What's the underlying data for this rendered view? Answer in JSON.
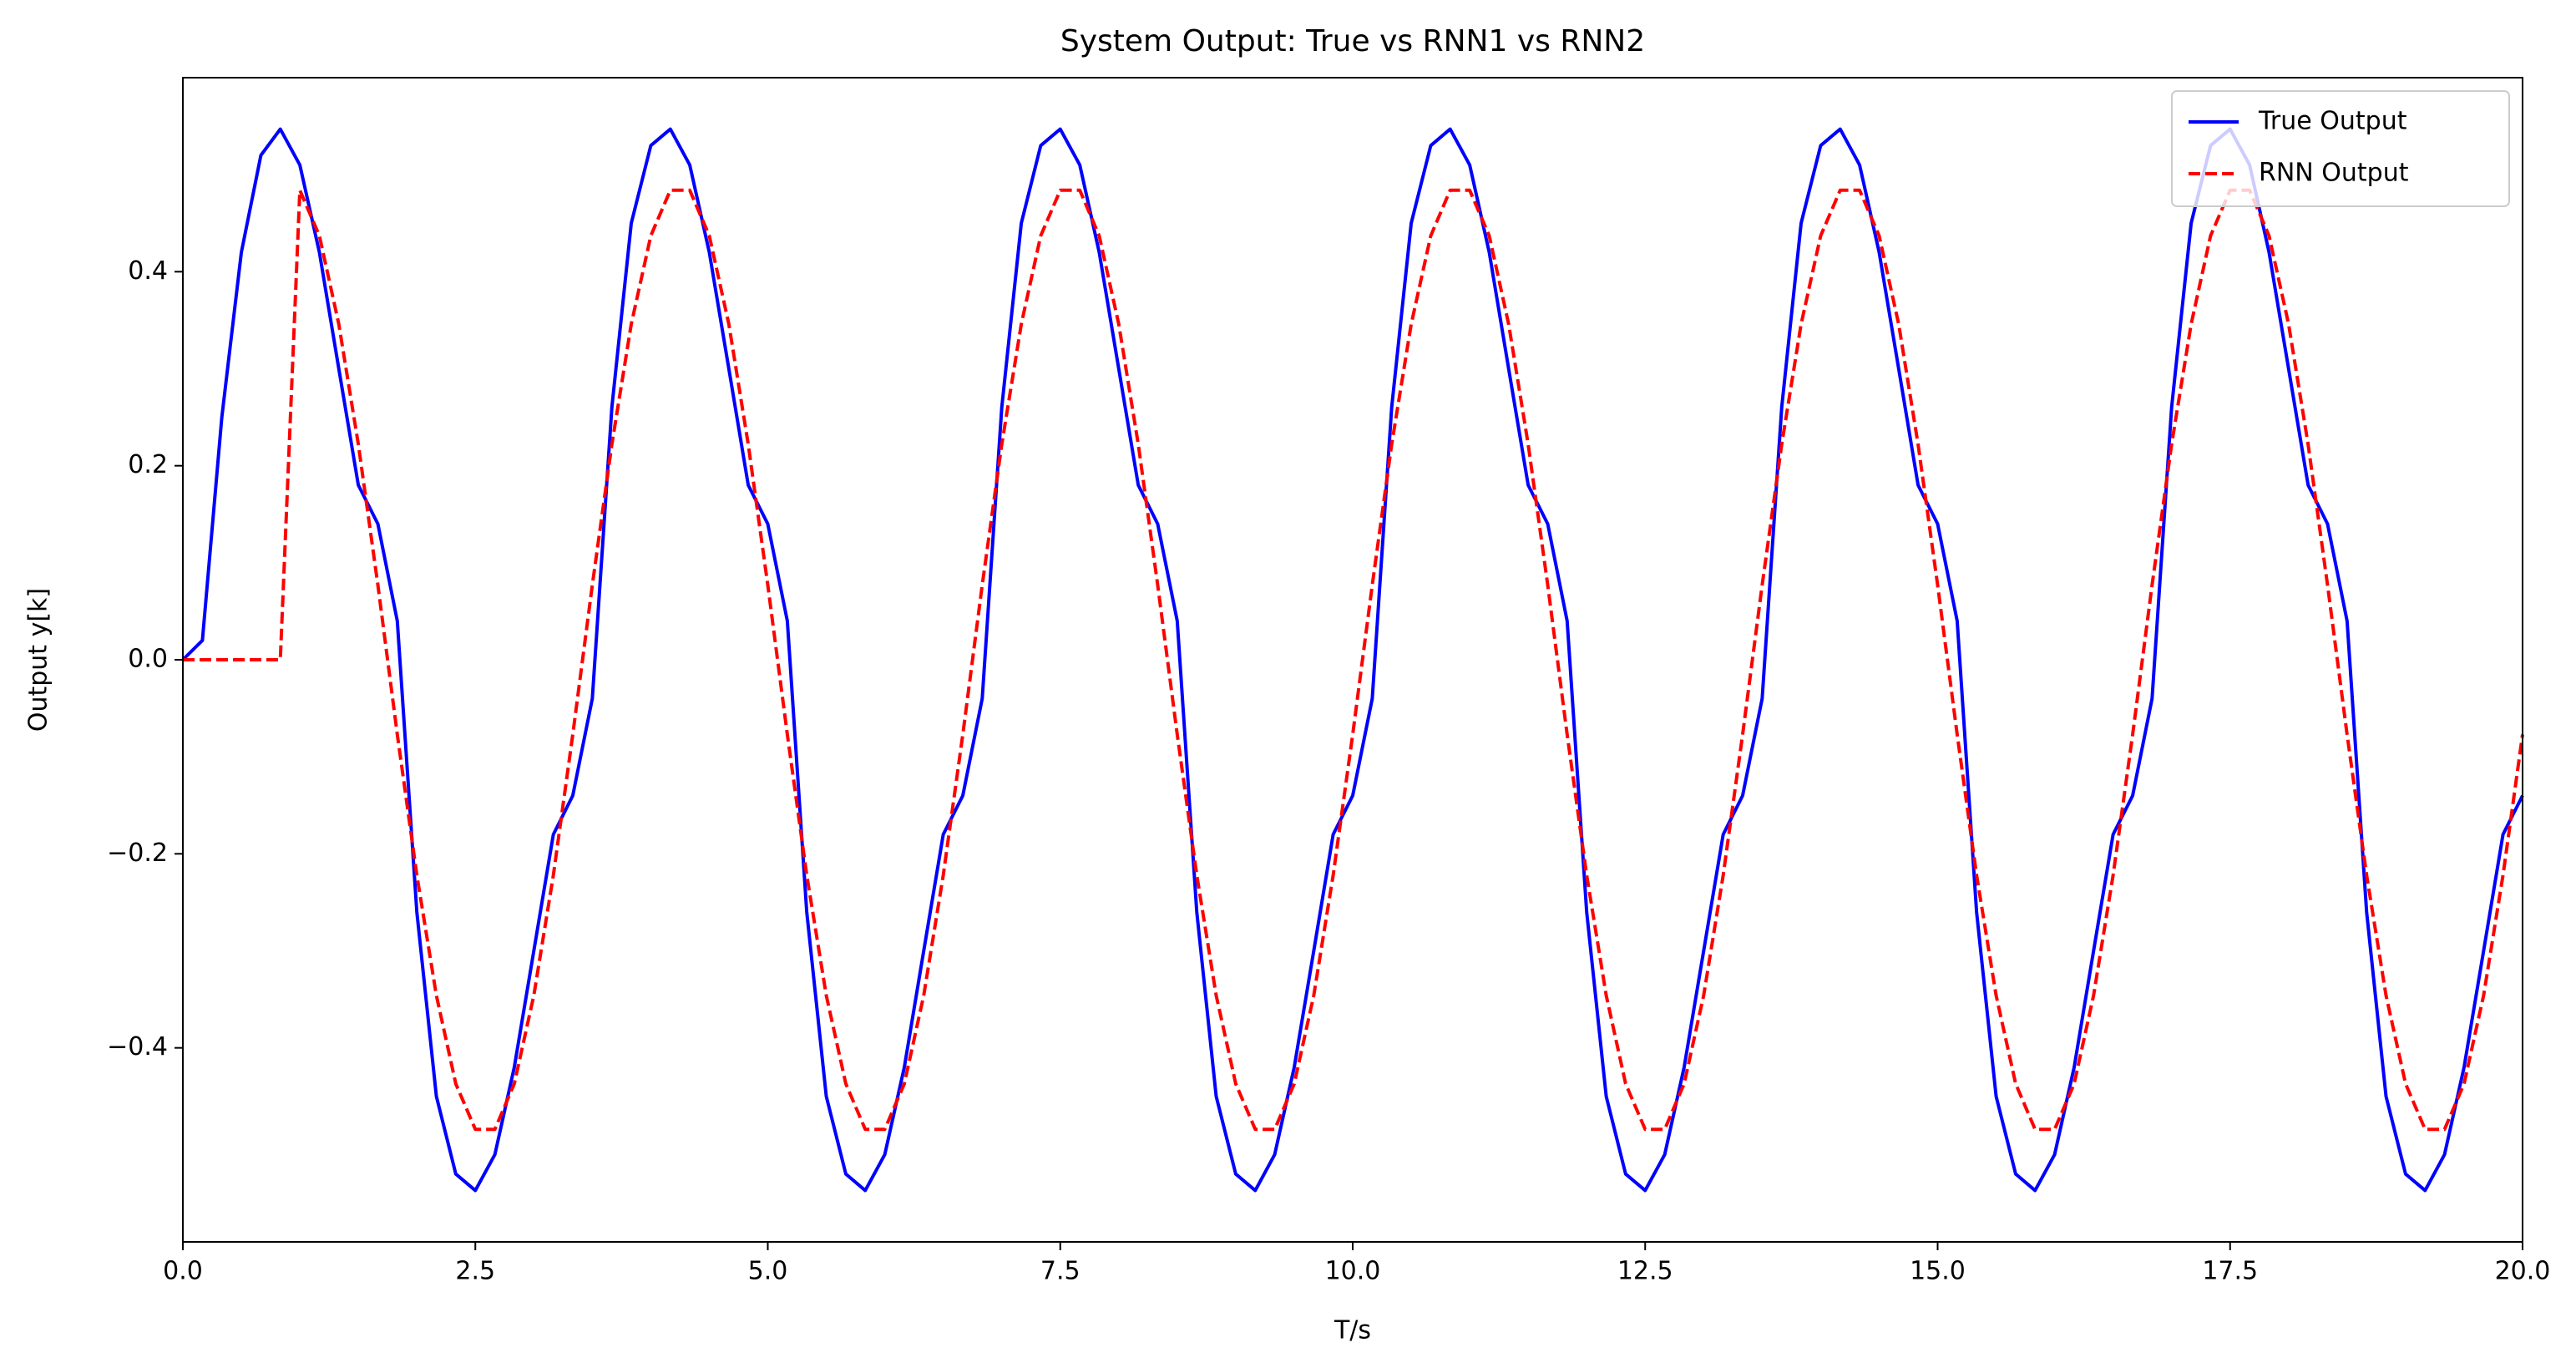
{
  "chart_data": {
    "type": "line",
    "title": "System Output: True vs RNN1 vs RNN2",
    "x_label": "T/s",
    "y_label": "Output y[k]",
    "x": [
      0,
      0.167,
      0.333,
      0.5,
      0.667,
      0.833,
      1,
      1.167,
      1.333,
      1.5,
      1.667,
      1.833,
      2,
      2.167,
      2.333,
      2.5,
      2.667,
      2.833,
      3,
      3.167,
      3.333,
      3.5,
      3.667,
      3.833,
      4,
      4.167,
      4.333,
      4.5,
      4.667,
      4.833,
      5,
      5.167,
      5.333,
      5.5,
      5.667,
      5.833,
      6,
      6.167,
      6.333,
      6.5,
      6.667,
      6.833,
      7,
      7.167,
      7.333,
      7.5,
      7.667,
      7.833,
      8,
      8.167,
      8.333,
      8.5,
      8.667,
      8.833,
      9,
      9.167,
      9.333,
      9.5,
      9.667,
      9.833,
      10,
      10.167,
      10.333,
      10.5,
      10.667,
      10.833,
      11,
      11.167,
      11.333,
      11.5,
      11.667,
      11.833,
      12,
      12.167,
      12.333,
      12.5,
      12.667,
      12.833,
      13,
      13.167,
      13.333,
      13.5,
      13.667,
      13.833,
      14,
      14.167,
      14.333,
      14.5,
      14.667,
      14.833,
      15,
      15.167,
      15.333,
      15.5,
      15.667,
      15.833,
      16,
      16.167,
      16.333,
      16.5,
      16.667,
      16.833,
      17,
      17.167,
      17.333,
      17.5,
      17.667,
      17.833,
      18,
      18.167,
      18.333,
      18.5,
      18.667,
      18.833,
      19,
      19.167,
      19.333,
      19.5,
      19.667,
      19.833,
      20
    ],
    "series": [
      {
        "name": "True Output",
        "color": "#0000ff",
        "linestyle": "solid",
        "values": [
          0,
          0.02,
          0.25,
          0.42,
          0.52,
          0.547,
          0.51,
          0.42,
          0.3,
          0.18,
          0.14,
          0.04,
          -0.26,
          -0.45,
          -0.53,
          -0.547,
          -0.51,
          -0.42,
          -0.3,
          -0.18,
          -0.14,
          -0.04,
          0.26,
          0.45,
          0.53,
          0.547,
          0.51,
          0.42,
          0.3,
          0.18,
          0.14,
          0.04,
          -0.26,
          -0.45,
          -0.53,
          -0.547,
          -0.51,
          -0.42,
          -0.3,
          -0.18,
          -0.14,
          -0.04,
          0.26,
          0.45,
          0.53,
          0.547,
          0.51,
          0.42,
          0.3,
          0.18,
          0.14,
          0.04,
          -0.26,
          -0.45,
          -0.53,
          -0.547,
          -0.51,
          -0.42,
          -0.3,
          -0.18,
          -0.14,
          -0.04,
          0.26,
          0.45,
          0.53,
          0.547,
          0.51,
          0.42,
          0.3,
          0.18,
          0.14,
          0.04,
          -0.26,
          -0.45,
          -0.53,
          -0.547,
          -0.51,
          -0.42,
          -0.3,
          -0.18,
          -0.14,
          -0.04,
          0.26,
          0.45,
          0.53,
          0.547,
          0.51,
          0.42,
          0.3,
          0.18,
          0.14,
          0.04,
          -0.26,
          -0.45,
          -0.53,
          -0.547,
          -0.51,
          -0.42,
          -0.3,
          -0.18,
          -0.14,
          -0.04,
          0.26,
          0.45,
          0.53,
          0.547,
          0.51,
          0.42,
          0.3,
          0.18,
          0.14,
          0.04,
          -0.26,
          -0.45,
          -0.53,
          -0.547,
          -0.51,
          -0.42,
          -0.3,
          -0.18,
          -0.14
        ]
      },
      {
        "name": "RNN Output",
        "color": "#ff0000",
        "linestyle": "dashed",
        "values": [
          0,
          0,
          0,
          0,
          0,
          0,
          0.484,
          0.437,
          0.346,
          0.222,
          0.077,
          -0.077,
          -0.222,
          -0.346,
          -0.437,
          -0.484,
          -0.484,
          -0.437,
          -0.346,
          -0.222,
          -0.077,
          0.077,
          0.222,
          0.346,
          0.437,
          0.484,
          0.484,
          0.437,
          0.346,
          0.222,
          0.077,
          -0.077,
          -0.222,
          -0.346,
          -0.437,
          -0.484,
          -0.484,
          -0.437,
          -0.346,
          -0.222,
          -0.077,
          0.077,
          0.222,
          0.346,
          0.437,
          0.484,
          0.484,
          0.437,
          0.346,
          0.222,
          0.077,
          -0.077,
          -0.222,
          -0.346,
          -0.437,
          -0.484,
          -0.484,
          -0.437,
          -0.346,
          -0.222,
          -0.077,
          0.077,
          0.222,
          0.346,
          0.437,
          0.484,
          0.484,
          0.437,
          0.346,
          0.222,
          0.077,
          -0.077,
          -0.222,
          -0.346,
          -0.437,
          -0.484,
          -0.484,
          -0.437,
          -0.346,
          -0.222,
          -0.077,
          0.077,
          0.222,
          0.346,
          0.437,
          0.484,
          0.484,
          0.437,
          0.346,
          0.222,
          0.077,
          -0.077,
          -0.222,
          -0.346,
          -0.437,
          -0.484,
          -0.484,
          -0.437,
          -0.346,
          -0.222,
          -0.077,
          0.077,
          0.222,
          0.346,
          0.437,
          0.484,
          0.484,
          0.437,
          0.346,
          0.222,
          0.077,
          -0.077,
          -0.222,
          -0.346,
          -0.437,
          -0.484,
          -0.484,
          -0.437,
          -0.346,
          -0.222,
          -0.077
        ]
      }
    ],
    "xlim": [
      0,
      20
    ],
    "xticks": [
      {
        "value": 0,
        "label": "0.0"
      },
      {
        "value": 2.5,
        "label": "2.5"
      },
      {
        "value": 5,
        "label": "5.0"
      },
      {
        "value": 7.5,
        "label": "7.5"
      },
      {
        "value": 10,
        "label": "10.0"
      },
      {
        "value": 12.5,
        "label": "12.5"
      },
      {
        "value": 15,
        "label": "15.0"
      },
      {
        "value": 17.5,
        "label": "17.5"
      },
      {
        "value": 20,
        "label": "20.0"
      }
    ],
    "ylim": [
      -0.6,
      0.6
    ],
    "yticks": [
      {
        "value": -0.4,
        "label": "−0.4"
      },
      {
        "value": -0.2,
        "label": "−0.2"
      },
      {
        "value": 0,
        "label": "0.0"
      },
      {
        "value": 0.2,
        "label": "0.2"
      },
      {
        "value": 0.4,
        "label": "0.4"
      }
    ],
    "grid": false,
    "legend_position": "upper right"
  }
}
